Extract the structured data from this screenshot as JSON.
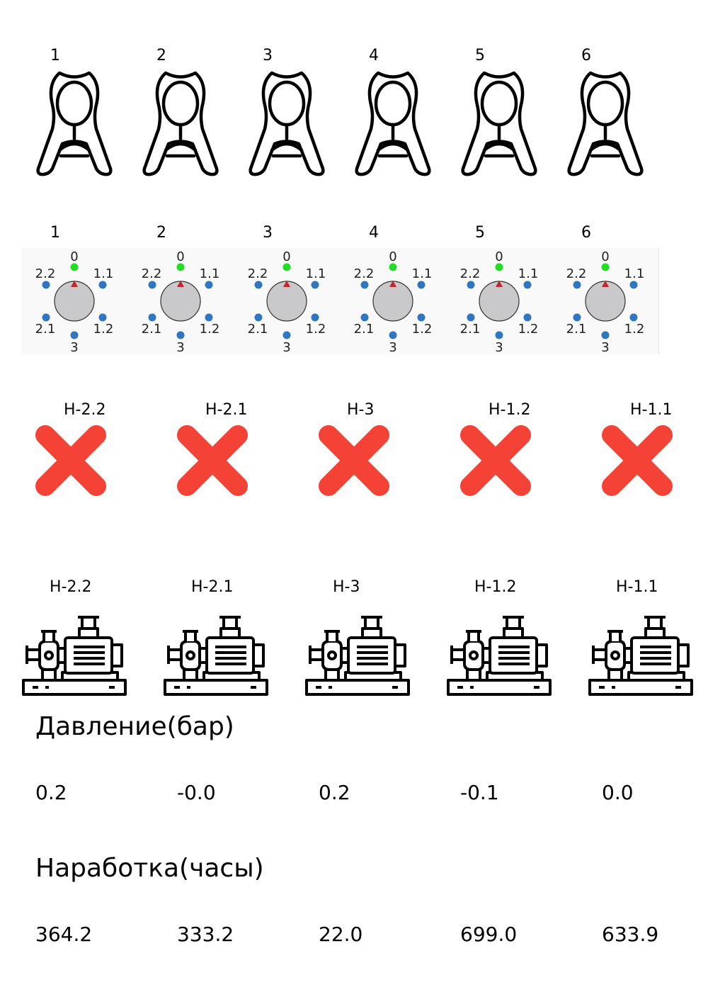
{
  "clamps": [
    {
      "label": "1",
      "icon": "clamp-icon"
    },
    {
      "label": "2",
      "icon": "clamp-icon"
    },
    {
      "label": "3",
      "icon": "clamp-icon"
    },
    {
      "label": "4",
      "icon": "clamp-icon"
    },
    {
      "label": "5",
      "icon": "clamp-icon"
    },
    {
      "label": "6",
      "icon": "clamp-icon"
    }
  ],
  "switches": [
    {
      "label": "1",
      "positions": [
        "0",
        "1.1",
        "1.2",
        "3",
        "2.1",
        "2.2"
      ],
      "active": "0"
    },
    {
      "label": "2",
      "positions": [
        "0",
        "1.1",
        "1.2",
        "3",
        "2.1",
        "2.2"
      ],
      "active": "0"
    },
    {
      "label": "3",
      "positions": [
        "0",
        "1.1",
        "1.2",
        "3",
        "2.1",
        "2.2"
      ],
      "active": "0"
    },
    {
      "label": "4",
      "positions": [
        "0",
        "1.1",
        "1.2",
        "3",
        "2.1",
        "2.2"
      ],
      "active": "0"
    },
    {
      "label": "5",
      "positions": [
        "0",
        "1.1",
        "1.2",
        "3",
        "2.1",
        "2.2"
      ],
      "active": "0"
    },
    {
      "label": "6",
      "positions": [
        "0",
        "1.1",
        "1.2",
        "3",
        "2.1",
        "2.2"
      ],
      "active": "0"
    }
  ],
  "status_markers": [
    {
      "label": "Н-2.2",
      "icon": "error-x-icon"
    },
    {
      "label": "Н-2.1",
      "icon": "error-x-icon"
    },
    {
      "label": "Н-3",
      "icon": "error-x-icon"
    },
    {
      "label": "Н-1.2",
      "icon": "error-x-icon"
    },
    {
      "label": "Н-1.1",
      "icon": "error-x-icon"
    }
  ],
  "pumps": [
    {
      "label": "Н-2.2",
      "icon": "pump-icon"
    },
    {
      "label": "Н-2.1",
      "icon": "pump-icon"
    },
    {
      "label": "Н-3",
      "icon": "pump-icon"
    },
    {
      "label": "Н-1.2",
      "icon": "pump-icon"
    },
    {
      "label": "Н-1.1",
      "icon": "pump-icon"
    }
  ],
  "pressure": {
    "heading": "Давление(бар)",
    "values": [
      "0.2",
      "-0.0",
      "0.2",
      "-0.1",
      "0.0"
    ]
  },
  "runtime": {
    "heading": "Наработка(часы)",
    "values": [
      "364.2",
      "333.2",
      "22.0",
      "699.0",
      "633.9"
    ]
  },
  "colors": {
    "active_position": "#22dd22",
    "inactive_position": "#2f75c0",
    "knob": "#c9c9cb",
    "pointer": "#c0282d",
    "error": "#f44336"
  }
}
